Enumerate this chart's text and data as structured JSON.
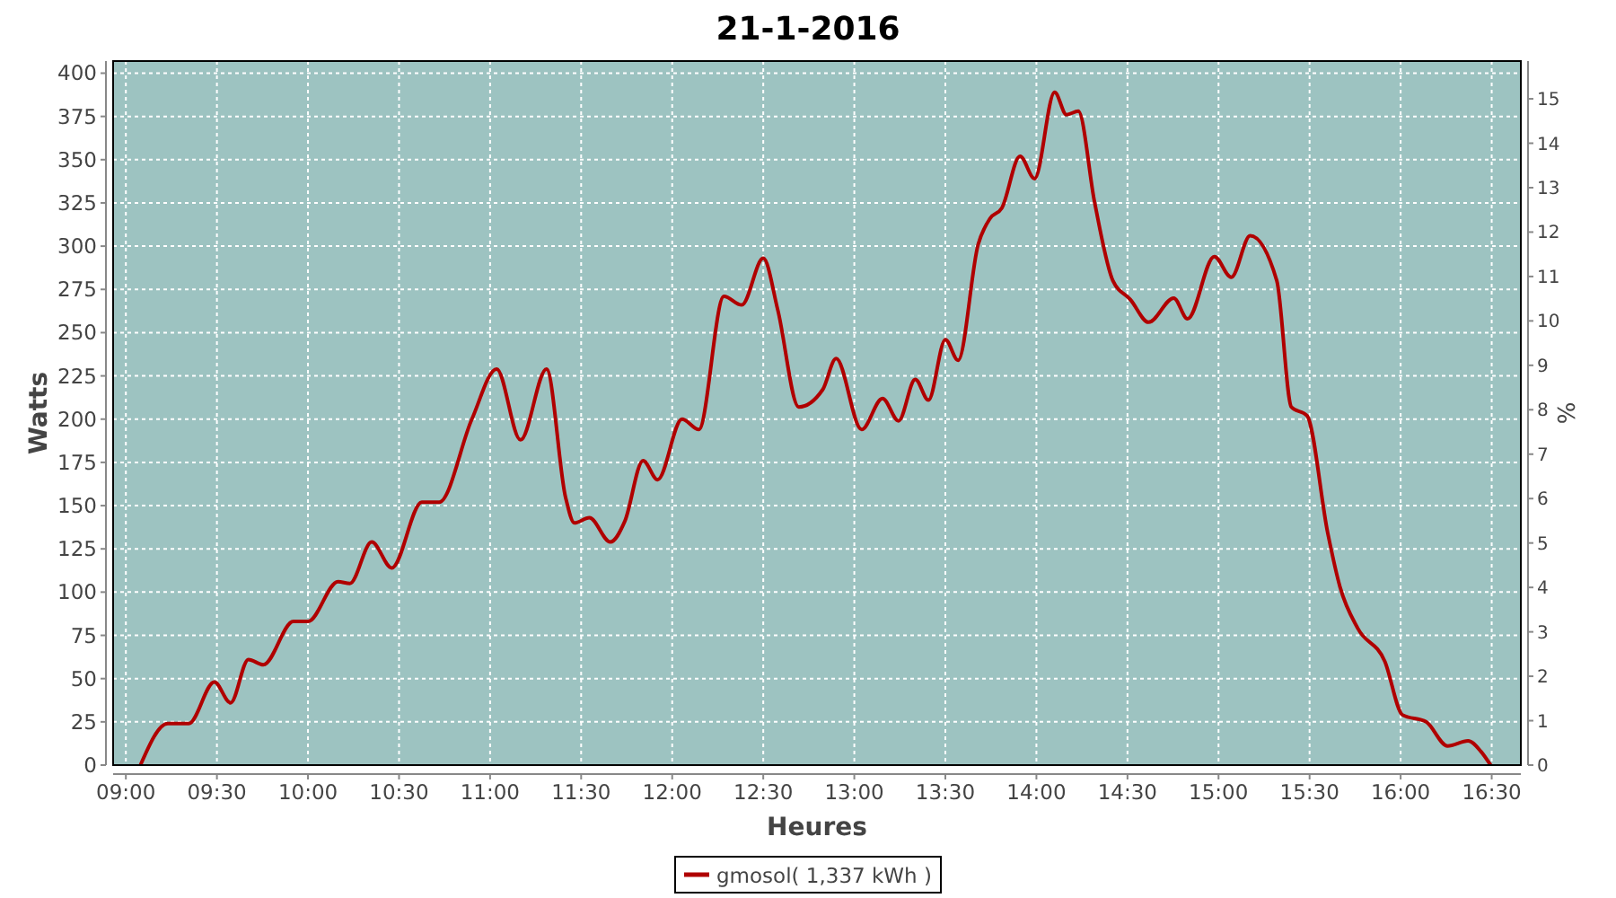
{
  "chart_data": {
    "type": "line",
    "title": "21-1-2016",
    "xlabel": "Heures",
    "ylabel": "Watts",
    "y2label": "%",
    "xlim": [
      8.93,
      16.66
    ],
    "xticks": [
      {
        "value": 9,
        "label": "09:00"
      },
      {
        "value": 9.5,
        "label": "09:30"
      },
      {
        "value": 10,
        "label": "10:00"
      },
      {
        "value": 10.5,
        "label": "10:30"
      },
      {
        "value": 11,
        "label": "11:00"
      },
      {
        "value": 11.5,
        "label": "11:30"
      },
      {
        "value": 12,
        "label": "12:00"
      },
      {
        "value": 12.5,
        "label": "12:30"
      },
      {
        "value": 13,
        "label": "13:00"
      },
      {
        "value": 13.5,
        "label": "13:30"
      },
      {
        "value": 14,
        "label": "14:00"
      },
      {
        "value": 14.5,
        "label": "14:30"
      },
      {
        "value": 15,
        "label": "15:00"
      },
      {
        "value": 15.5,
        "label": "15:30"
      },
      {
        "value": 16,
        "label": "16:00"
      },
      {
        "value": 16.5,
        "label": "16:30"
      }
    ],
    "ylim": [
      0,
      407
    ],
    "yticks": [
      0,
      25,
      50,
      75,
      100,
      125,
      150,
      175,
      200,
      225,
      250,
      275,
      300,
      325,
      350,
      375,
      400
    ],
    "y2lim": [
      0,
      15.85
    ],
    "y2ticks": [
      0,
      1,
      2,
      3,
      4,
      5,
      6,
      7,
      8,
      9,
      10,
      11,
      12,
      13,
      14,
      15
    ],
    "grid": true,
    "legend": "bottom",
    "marker": "none",
    "line_style": "solid",
    "series": [
      {
        "name": "gmosol( 1,337 kWh )",
        "color": "#b00000",
        "x": [
          9.08,
          9.23,
          9.345,
          9.486,
          9.575,
          9.673,
          9.755,
          9.92,
          10.0,
          10.165,
          10.23,
          10.35,
          10.46,
          10.625,
          10.72,
          10.9,
          11.036,
          11.167,
          11.31,
          11.414,
          11.463,
          11.545,
          11.66,
          11.74,
          11.84,
          11.92,
          12.054,
          12.146,
          12.284,
          12.382,
          12.5,
          12.58,
          12.695,
          12.826,
          12.9,
          13.04,
          13.155,
          13.243,
          13.335,
          13.407,
          13.5,
          13.57,
          13.68,
          13.745,
          13.81,
          13.91,
          13.99,
          14.1,
          14.165,
          14.23,
          14.32,
          14.42,
          14.517,
          14.616,
          14.754,
          14.83,
          14.977,
          15.07,
          15.174,
          15.32,
          15.4,
          15.486,
          15.6,
          15.667,
          15.765,
          15.913,
          16.01,
          16.14,
          16.258,
          16.37,
          16.44,
          16.494
        ],
        "values": [
          0,
          24,
          24,
          48,
          36,
          61,
          58,
          83,
          83,
          106,
          105,
          129,
          114,
          152,
          152,
          200,
          229,
          188,
          229,
          155,
          140,
          143,
          129,
          141,
          176,
          165,
          200,
          194,
          271,
          266,
          293,
          263,
          207,
          217,
          235,
          194,
          212,
          199,
          223,
          211,
          246,
          234,
          301,
          316,
          322,
          352,
          339,
          389,
          376,
          378,
          325,
          280,
          269,
          256,
          270,
          258,
          294,
          282,
          306,
          280,
          207,
          202,
          134,
          103,
          79,
          60,
          29,
          25,
          11,
          14,
          8,
          0
        ]
      }
    ]
  }
}
